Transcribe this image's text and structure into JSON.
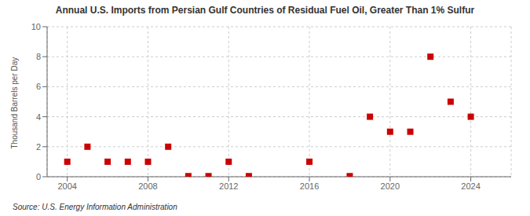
{
  "chart_data": {
    "type": "scatter",
    "title": "Annual U.S. Imports from Persian Gulf Countries of Residual Fuel Oil, Greater Than 1% Sulfur",
    "ylabel": "Thousand Barrels per Day",
    "annotations": [
      "Source: U.S. Energy Information Administration"
    ],
    "x": [
      2004,
      2005,
      2006,
      2007,
      2008,
      2009,
      2010,
      2011,
      2012,
      2013,
      2016,
      2018,
      2019,
      2020,
      2021,
      2022,
      2023,
      2024
    ],
    "values": [
      1,
      2,
      1,
      1,
      1,
      2,
      0.04,
      0.04,
      1,
      0.04,
      1,
      0.04,
      4,
      3,
      3,
      8,
      5,
      4
    ],
    "color": "#cc0000",
    "marker": "square",
    "xlim": [
      2003.0,
      2026.0
    ],
    "ylim": [
      0,
      10
    ],
    "xticks": [
      2004,
      2008,
      2012,
      2016,
      2020,
      2024
    ],
    "yticks": [
      0,
      2,
      4,
      6,
      8,
      10
    ],
    "grid": true
  }
}
